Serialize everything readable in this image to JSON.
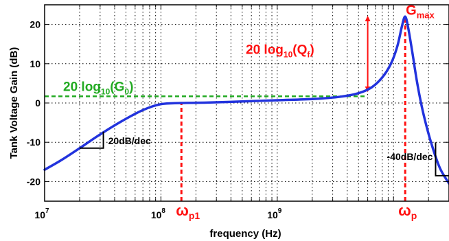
{
  "chart_data": {
    "type": "line",
    "xlabel": "frequency (Hz)",
    "ylabel": "Tank Voltage Gain (dB)",
    "xscale": "log",
    "xlim": [
      10000000,
      30000000000
    ],
    "ylim": [
      -25,
      25
    ],
    "grid": true,
    "x_tick_labels": [
      {
        "base": "10",
        "exp": "7",
        "value": 10000000
      },
      {
        "base": "10",
        "exp": "8",
        "value": 100000000
      },
      {
        "base": "10",
        "exp": "9",
        "value": 1000000000
      }
    ],
    "y_ticks": [
      -20,
      -10,
      0,
      10,
      20
    ],
    "y_tick_labels": [
      "-20",
      "-10",
      "0",
      "10",
      "20"
    ],
    "series": [
      {
        "color": "#2233dd",
        "x": [
          10000000,
          14000000,
          20000000,
          30000000,
          45000000,
          70000000,
          100000000,
          150000000,
          250000000,
          500000000,
          1000000000,
          2000000000,
          3500000000,
          5000000000,
          6500000000,
          8000000000,
          9500000000,
          10800000000,
          11800000000,
          12600000000,
          13400000000,
          14500000000,
          16000000000,
          18000000000,
          21000000000,
          25000000000,
          30000000000
        ],
        "y": [
          -17,
          -14.5,
          -11.5,
          -8,
          -4.8,
          -1.8,
          -0.3,
          0.0,
          0.1,
          0.4,
          0.7,
          1.0,
          1.6,
          2.5,
          4.0,
          6.5,
          10.0,
          14.5,
          19.5,
          22.0,
          19.0,
          13.0,
          5.0,
          -2.5,
          -10.0,
          -16.5,
          -20.5
        ]
      }
    ],
    "reference_lines": [
      {
        "kind": "horizontal",
        "y": 1.7,
        "x_range": [
          10000000,
          5900000000
        ],
        "color": "#22aa22",
        "style": "dashed"
      },
      {
        "kind": "vertical",
        "x": 150000000,
        "y_range": [
          -25,
          0
        ],
        "color": "#ff1111",
        "style": "dashed"
      },
      {
        "kind": "vertical",
        "x": 12600000000,
        "y_range": [
          -25,
          22
        ],
        "color": "#ff1111",
        "style": "dashed"
      }
    ],
    "arrows": [
      {
        "x": 6000000000,
        "y_from": 3.5,
        "y_to": 21.5,
        "color": "#ff1111",
        "double_headed": true
      }
    ],
    "slope_markers": [
      {
        "x_from": 20000000,
        "x_to": 32000000,
        "y_low": -11.5,
        "y_high": -7.3
      },
      {
        "x_from": 23000000000,
        "x_to": 30000000000,
        "y_low": -18.5,
        "y_high": -10
      }
    ],
    "annotations": {
      "g0": {
        "pre": "20 log",
        "sub1": "10",
        "mid": "(G",
        "sub2": "0",
        "post": ")",
        "color": "#22aa22"
      },
      "qf": {
        "pre": "20 log",
        "sub1": "10",
        "mid": "(Q",
        "sub2": "f",
        "post": ")",
        "color": "#ff1111"
      },
      "gmax": {
        "main": "G",
        "sub": "max",
        "color": "#ff1111"
      },
      "wp1": {
        "main": "ω",
        "sub": "p1",
        "color": "#ff1111"
      },
      "wp": {
        "main": "ω",
        "sub": "p",
        "color": "#ff1111"
      },
      "slope_up": "20dB/dec",
      "slope_down": "-40dB/dec"
    }
  }
}
